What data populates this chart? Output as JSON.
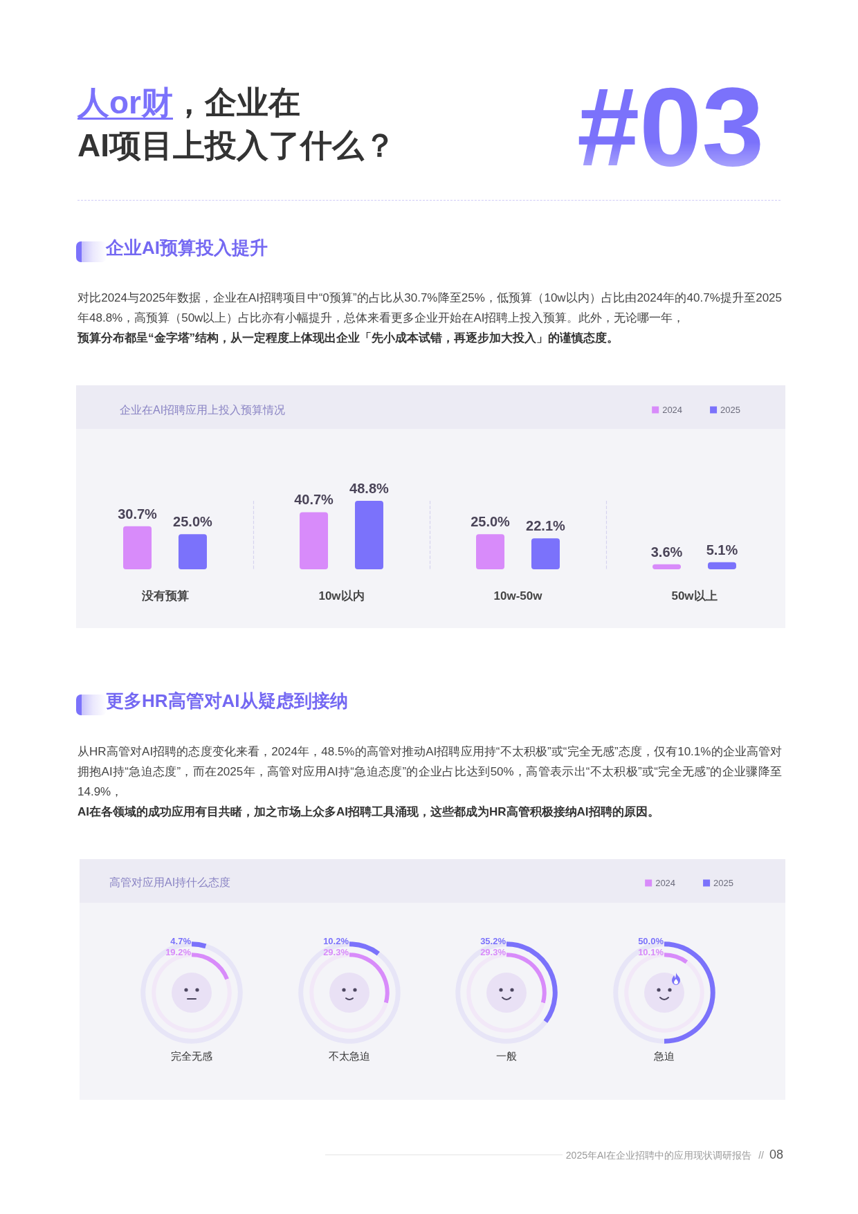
{
  "chart_data": [
    {
      "type": "bar",
      "title": "企业在AI招聘应用上投入预算情况",
      "categories": [
        "没有预算",
        "10w以内",
        "10w-50w",
        "50w以上"
      ],
      "series": [
        {
          "name": "2024",
          "color": "#d88bfa",
          "values": [
            30.7,
            40.7,
            25.0,
            3.6
          ],
          "value_labels": [
            "30.7%",
            "40.7%",
            "25.0%",
            "3.6%"
          ]
        },
        {
          "name": "2025",
          "color": "#7b72fb",
          "values": [
            25.0,
            48.8,
            22.1,
            5.1
          ],
          "value_labels": [
            "25.0%",
            "48.8%",
            "22.1%",
            "5.1%"
          ]
        }
      ],
      "legend": "top right",
      "grid": "x",
      "tick_labels": "x",
      "annotations": [
        "人or财",
        "，企业在",
        "AI项目上投入了什么？",
        "#03",
        "企业AI预算投入提升",
        "对比2024与2025年数据，企业在AI招聘项目中“0预算”的占比从30.7%降至25%，低预算（10w以内）占比由2024年的40.7%提升至2025年48.8%，高预算（50w以上）占比亦有小幅提升，总体来看更多企业开始在AI招聘上投入预算。此外，无论哪一年，",
        "预算分布都呈“金字塔”结构，从一定程度上体现出企业「先小成本试错，再逐步加大投入」的谨慎态度。"
      ]
    },
    {
      "type": "donut",
      "title": "高管对应用AI持什么态度",
      "xlabel": "完全无感",
      "categories": [
        null,
        null
      ],
      "series": [
        {
          "name": "2024",
          "colors": [
            "#d88bfa",
            "#f2e8f8"
          ],
          "values": [
            19.2,
            80.8
          ],
          "value_labels": [
            "19.2%",
            null
          ]
        },
        {
          "name": "2025",
          "colors": [
            "#7b72fb",
            "#e7e5f7"
          ],
          "values": [
            4.7,
            95.3
          ],
          "value_labels": [
            "4.7%",
            null
          ]
        }
      ],
      "legend": "top right",
      "annotations": [
        "更多HR高管对AI从疑虑到接纳",
        "从HR高管对AI招聘的态度变化来看，2024年，48.5%的高管对推动AI招聘应用持“不太积极”或“完全无感”态度，仅有10.1%的企业高管对拥抱AI持“急迫态度”，而在2025年，高管对应用AI持“急迫态度”的企业占比达到50%，高管表示出“不太积极”或“完全无感”的企业骤降至14.9%，",
        "AI在各领域的成功应用有目共睹，加之市场上众多AI招聘工具涌现，这些都成为HR高管积极接纳AI招聘的原因。",
        "2025年AI在企业招聘中的应用现状调研报告",
        "//",
        "08"
      ]
    },
    {
      "type": "donut",
      "xlabel": "不太急迫",
      "categories": [
        null,
        null
      ],
      "series": [
        {
          "name": "2024",
          "colors": [
            "#d88bfa",
            "#f2e8f8"
          ],
          "values": [
            29.3,
            70.7
          ],
          "value_labels": [
            "29.3%",
            null
          ]
        },
        {
          "name": "2025",
          "colors": [
            "#7b72fb",
            "#e7e5f7"
          ],
          "values": [
            10.2,
            89.8
          ],
          "value_labels": [
            "10.2%",
            null
          ]
        }
      ]
    },
    {
      "type": "donut",
      "xlabel": "一般",
      "categories": [
        null,
        null
      ],
      "series": [
        {
          "name": "2024",
          "colors": [
            "#d88bfa",
            "#f2e8f8"
          ],
          "values": [
            29.3,
            70.7
          ],
          "value_labels": [
            "29.3%",
            null
          ]
        },
        {
          "name": "2025",
          "colors": [
            "#7b72fb",
            "#e7e5f7"
          ],
          "values": [
            35.2,
            64.8
          ],
          "value_labels": [
            "35.2%",
            null
          ]
        }
      ]
    },
    {
      "type": "donut",
      "xlabel": "急迫",
      "categories": [
        null,
        null
      ],
      "series": [
        {
          "name": "2024",
          "colors": [
            "#d88bfa",
            "#f2e8f8"
          ],
          "values": [
            10.1,
            89.9
          ],
          "value_labels": [
            "10.1%",
            null
          ]
        },
        {
          "name": "2025",
          "colors": [
            "#7b72fb",
            "#e7e5f7"
          ],
          "values": [
            50.0,
            50.0
          ],
          "value_labels": [
            "50.0%",
            null
          ]
        }
      ]
    }
  ]
}
